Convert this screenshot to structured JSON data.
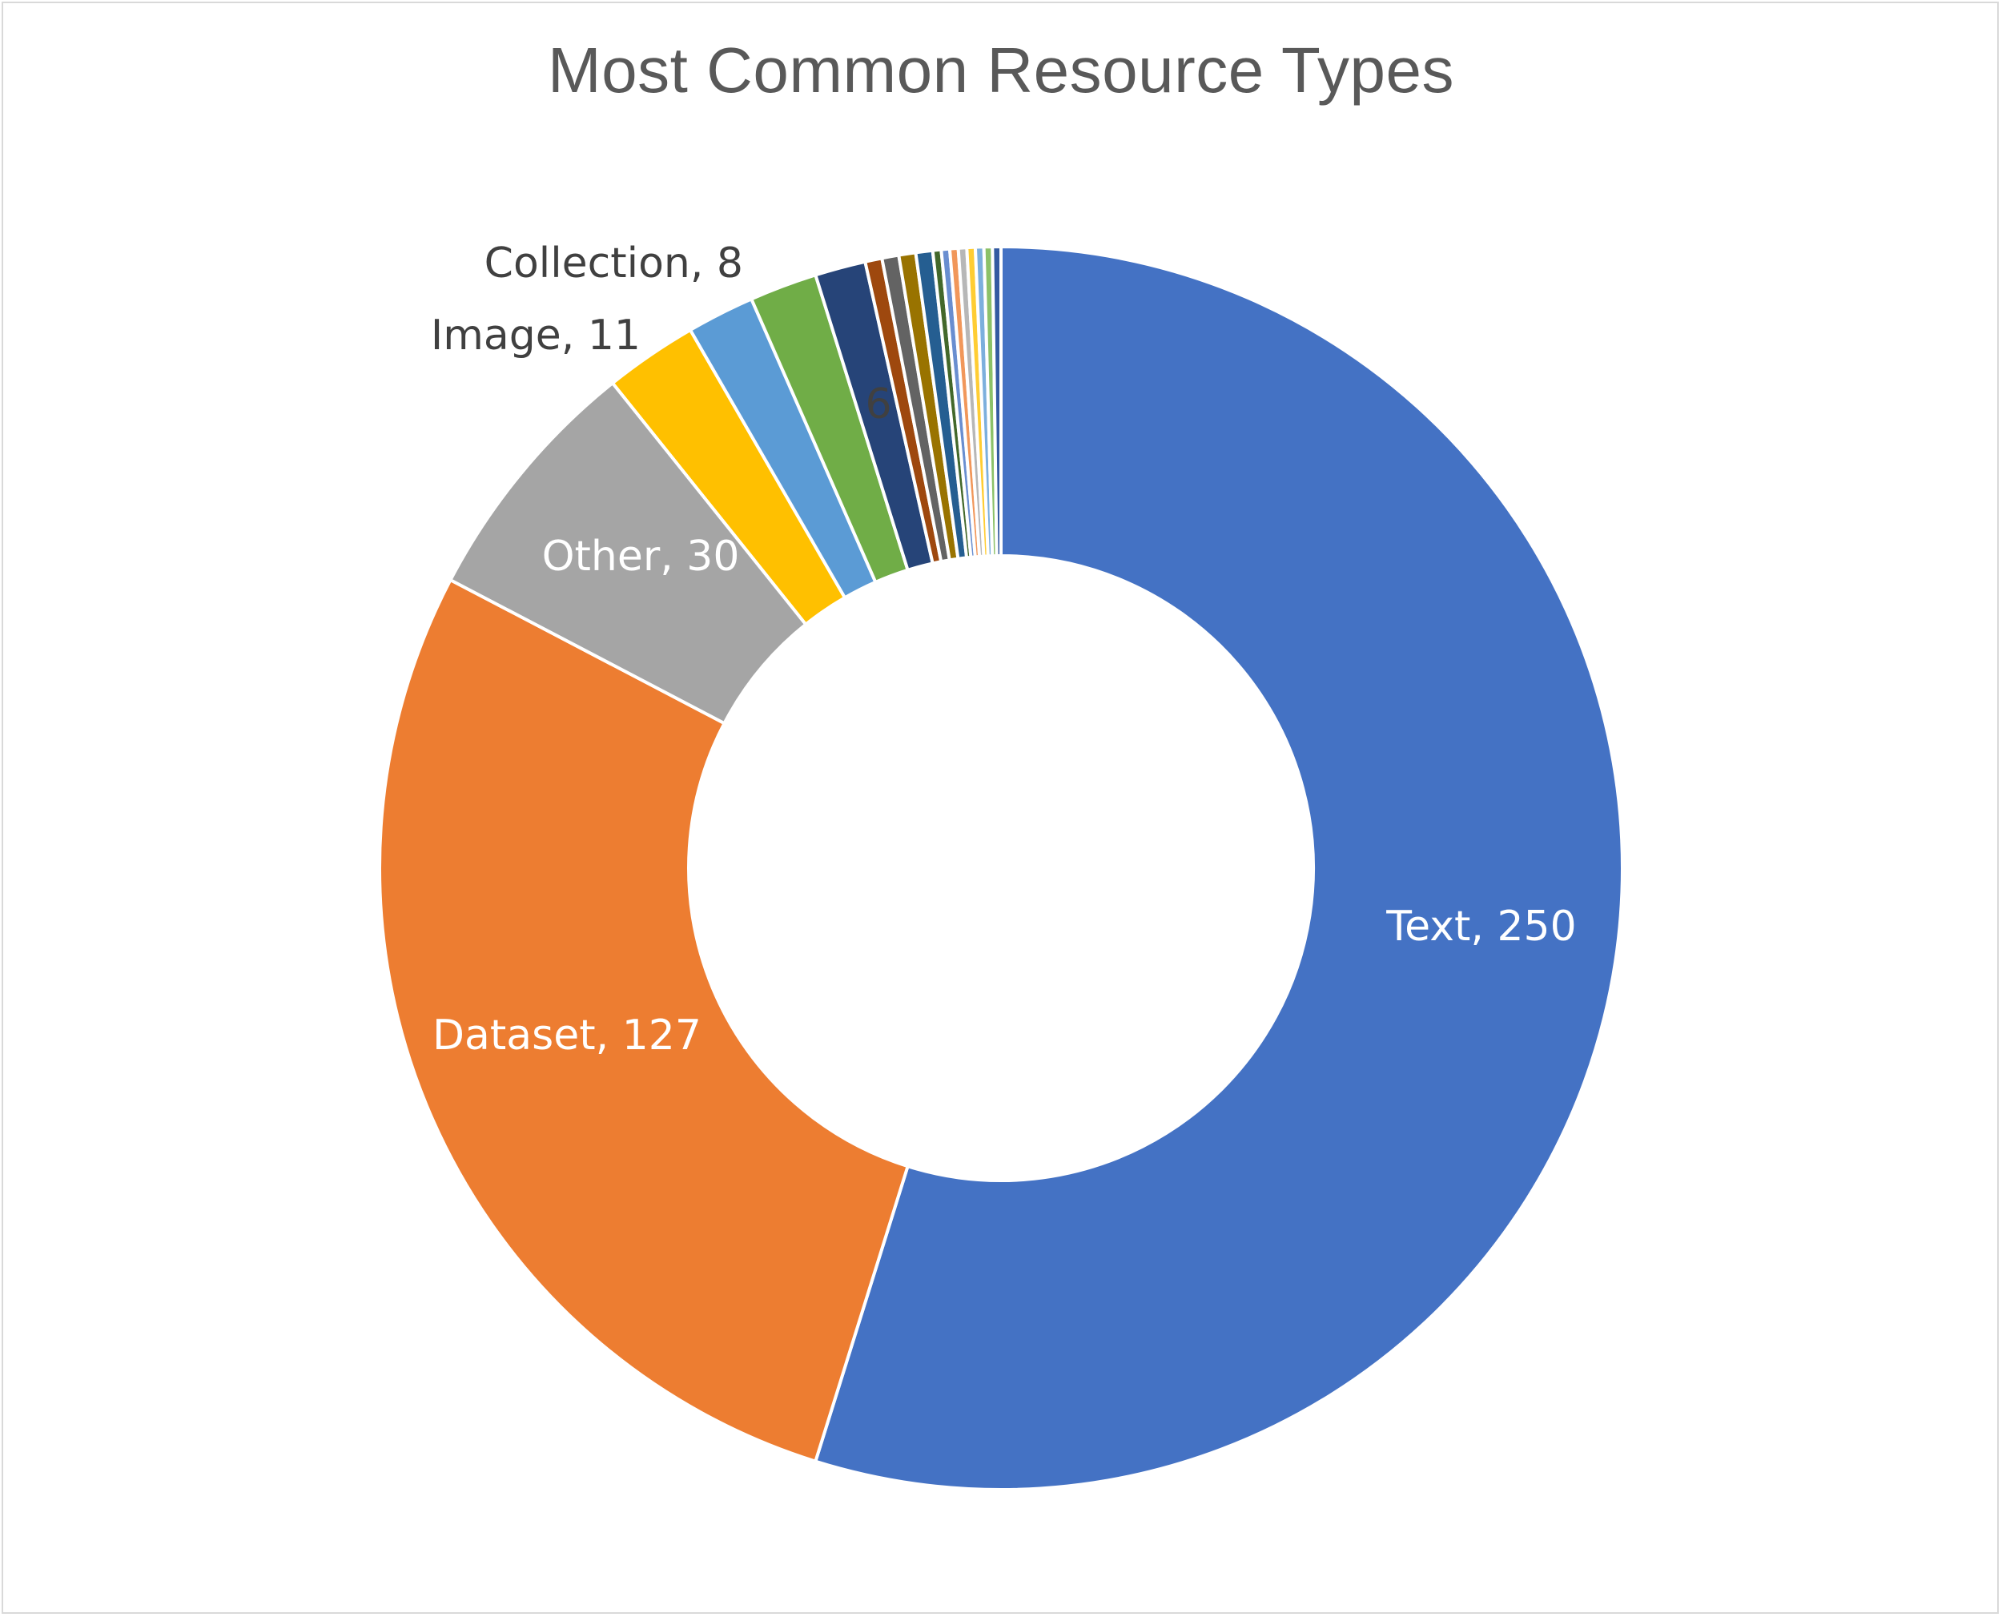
{
  "chart_data": {
    "type": "pie",
    "variant": "doughnut",
    "title": "Most Common Resource Types",
    "legend": "none",
    "series": [
      {
        "category": "Text",
        "value": 250,
        "color": "#4472C4",
        "label": "Text, 250"
      },
      {
        "category": "Dataset",
        "value": 127,
        "color": "#ED7D31",
        "label": "Dataset, 127"
      },
      {
        "category": "Other",
        "value": 30,
        "color": "#A5A5A5",
        "label": "Other, 30"
      },
      {
        "category": "Image",
        "value": 11,
        "color": "#FFC000",
        "label": "Image, 11"
      },
      {
        "category": "Collection",
        "value": 8,
        "color": "#5B9BD5",
        "label": "Collection, 8"
      },
      {
        "category": "",
        "value": 8,
        "color": "#70AD47",
        "label": ""
      },
      {
        "category": "",
        "value": 6,
        "color": "#264478",
        "label": "6"
      },
      {
        "category": "",
        "value": 2,
        "color": "#9E480E",
        "label": ""
      },
      {
        "category": "",
        "value": 2,
        "color": "#636363",
        "label": ""
      },
      {
        "category": "",
        "value": 2,
        "color": "#997300",
        "label": ""
      },
      {
        "category": "",
        "value": 2,
        "color": "#255E91",
        "label": ""
      },
      {
        "category": "",
        "value": 1,
        "color": "#43682B",
        "label": ""
      },
      {
        "category": "",
        "value": 1,
        "color": "#698ED0",
        "label": ""
      },
      {
        "category": "",
        "value": 1,
        "color": "#F1975A",
        "label": ""
      },
      {
        "category": "",
        "value": 1,
        "color": "#B7B7B7",
        "label": ""
      },
      {
        "category": "",
        "value": 1,
        "color": "#FFCD33",
        "label": ""
      },
      {
        "category": "",
        "value": 1,
        "color": "#7CAFDD",
        "label": ""
      },
      {
        "category": "",
        "value": 1,
        "color": "#8CC168",
        "label": ""
      },
      {
        "category": "",
        "value": 1,
        "color": "#335AA1",
        "label": ""
      }
    ],
    "label_colors": {
      "inside": "#FFFFFF",
      "outside": "#404040"
    }
  }
}
